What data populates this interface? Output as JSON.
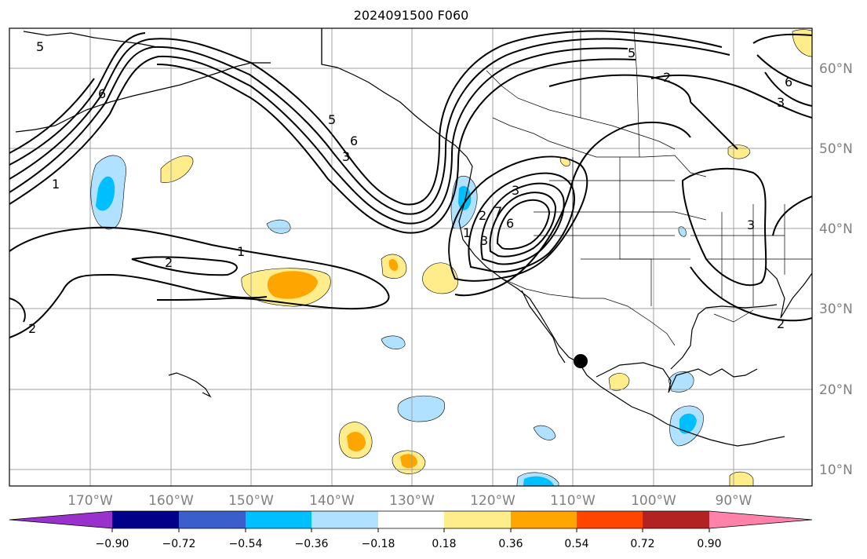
{
  "title": "2024091500 F060",
  "map": {
    "lon_ticks": [
      "170°W",
      "160°W",
      "150°W",
      "140°W",
      "130°W",
      "120°W",
      "110°W",
      "100°W",
      "90°W"
    ],
    "lat_ticks": [
      "60°N",
      "50°N",
      "40°N",
      "30°N",
      "20°N",
      "10°N"
    ],
    "contour_labels": [
      "5",
      "6",
      "1",
      "6",
      "3",
      "5",
      "5",
      "2",
      "6",
      "3",
      "1",
      "2",
      "2",
      "2",
      "3",
      "1",
      "6",
      "3",
      "7",
      "2",
      "3"
    ],
    "marker": "black-dot"
  },
  "colorbar": {
    "labels": [
      "−0.90",
      "−0.72",
      "−0.54",
      "−0.36",
      "−0.18",
      "0.18",
      "0.36",
      "0.54",
      "0.72",
      "0.90"
    ],
    "colors": [
      "#9932cc",
      "#00008b",
      "#3a5fcd",
      "#00bfff",
      "#b0e2ff",
      "#ffffff",
      "#ffec8b",
      "#ffa500",
      "#ff4500",
      "#b22222",
      "#ff82ab"
    ]
  }
}
